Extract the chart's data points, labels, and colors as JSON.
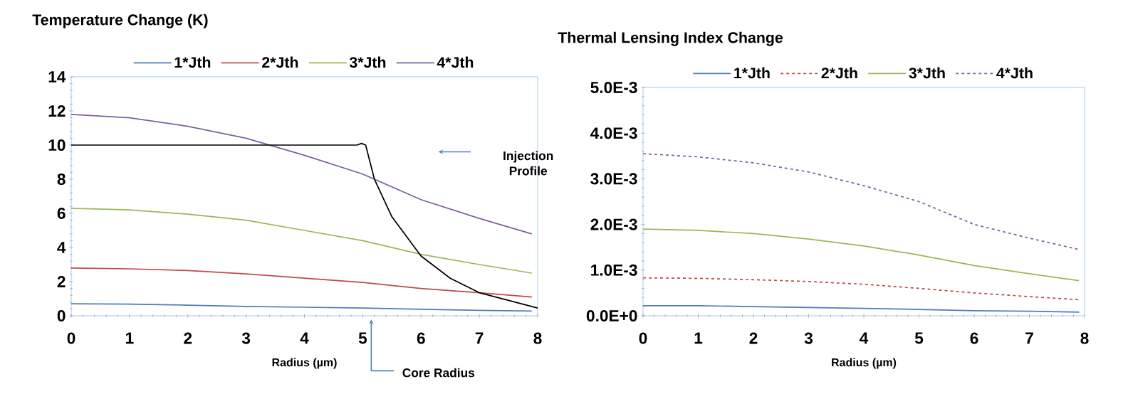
{
  "chart_data": [
    {
      "type": "line",
      "title": "Temperature Change (K)",
      "xlabel": "Radius (µm)",
      "xlim": [
        0,
        8
      ],
      "xticks": [
        0,
        1,
        2,
        3,
        4,
        5,
        6,
        7,
        8
      ],
      "ylim": [
        0,
        14
      ],
      "yticks": [
        0,
        2,
        4,
        6,
        8,
        10,
        12,
        14
      ],
      "legend": "top",
      "series": [
        {
          "name": "1*Jth",
          "color": "#4a7ebb",
          "line_style": "solid",
          "x": [
            0,
            1,
            2,
            3,
            4,
            5,
            6,
            7,
            7.9
          ],
          "values": [
            0.7,
            0.68,
            0.62,
            0.55,
            0.5,
            0.45,
            0.38,
            0.32,
            0.28
          ]
        },
        {
          "name": "2*Jth",
          "color": "#be4b48",
          "line_style": "solid",
          "x": [
            0,
            1,
            2,
            3,
            4,
            5,
            6,
            7,
            7.9
          ],
          "values": [
            2.8,
            2.75,
            2.65,
            2.45,
            2.2,
            1.95,
            1.6,
            1.35,
            1.1
          ]
        },
        {
          "name": "3*Jth",
          "color": "#98b954",
          "line_style": "solid",
          "x": [
            0,
            1,
            2,
            3,
            4,
            5,
            6,
            7,
            7.9
          ],
          "values": [
            6.3,
            6.2,
            5.95,
            5.6,
            5.0,
            4.4,
            3.6,
            3.0,
            2.5
          ]
        },
        {
          "name": "4*Jth",
          "color": "#7d60a0",
          "line_style": "solid",
          "x": [
            0,
            1,
            2,
            3,
            4,
            5,
            6,
            7,
            7.9
          ],
          "values": [
            11.8,
            11.6,
            11.1,
            10.4,
            9.4,
            8.3,
            6.8,
            5.7,
            4.8
          ]
        },
        {
          "color": "#000000",
          "line_style": "solid",
          "x": [
            0,
            4.9,
            4.98,
            5.05,
            5.2,
            5.5,
            6,
            6.5,
            7,
            7.5,
            8
          ],
          "values": [
            10,
            10,
            10.1,
            10,
            8,
            5.8,
            3.5,
            2.2,
            1.35,
            0.9,
            0.45
          ]
        }
      ],
      "annotations": [
        "Injection Profile",
        "Core Radius"
      ]
    },
    {
      "type": "line",
      "title": "Thermal Lensing Index Change",
      "xlabel": "Radius (µm)",
      "xlim": [
        0,
        8
      ],
      "xticks": [
        0,
        1,
        2,
        3,
        4,
        5,
        6,
        7,
        8
      ],
      "ylim": [
        0,
        0.005
      ],
      "yticks": [
        {
          "value": 0,
          "label": "0.0E+0"
        },
        {
          "value": 0.001,
          "label": "1.0E-3"
        },
        {
          "value": 0.002,
          "label": "2.0E-3"
        },
        {
          "value": 0.003,
          "label": "3.0E-3"
        },
        {
          "value": 0.004,
          "label": "4.0E-3"
        },
        {
          "value": 0.005,
          "label": "5.0E-3"
        }
      ],
      "legend": "top",
      "series": [
        {
          "name": "1*Jth",
          "color": "#4a7ebb",
          "line_style": "solid",
          "x": [
            0,
            1,
            2,
            3,
            4,
            5,
            6,
            7,
            7.9
          ],
          "values": [
            0.00022,
            0.00022,
            0.0002,
            0.00018,
            0.00016,
            0.00014,
            0.00011,
            0.0001,
            8e-05
          ]
        },
        {
          "name": "2*Jth",
          "color": "#be4b48",
          "line_style": "dashed",
          "x": [
            0,
            1,
            2,
            3,
            4,
            5,
            6,
            7,
            7.9
          ],
          "values": [
            0.00083,
            0.00082,
            0.00079,
            0.00075,
            0.00069,
            0.0006,
            0.0005,
            0.00042,
            0.00035
          ]
        },
        {
          "name": "3*Jth",
          "color": "#98b954",
          "line_style": "solid",
          "x": [
            0,
            1,
            2,
            3,
            4,
            5,
            6,
            7,
            7.9
          ],
          "values": [
            0.0019,
            0.00187,
            0.0018,
            0.00168,
            0.00153,
            0.00133,
            0.0011,
            0.00092,
            0.00077
          ]
        },
        {
          "name": "4*Jth",
          "color": "#7d60a0",
          "line_style": "dashed",
          "x": [
            0,
            1,
            2,
            3,
            4,
            5,
            6,
            7,
            7.9
          ],
          "values": [
            0.00355,
            0.00348,
            0.00335,
            0.00315,
            0.00285,
            0.0025,
            0.002,
            0.0017,
            0.00145
          ]
        }
      ]
    }
  ]
}
